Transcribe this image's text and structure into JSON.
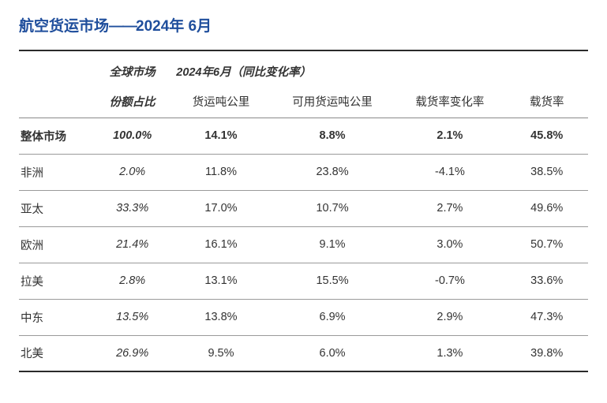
{
  "title": {
    "part1": "航空货运市场",
    "dash": "——",
    "part2": "2024年 6月"
  },
  "header": {
    "col1_top": "全球市场",
    "span_label": "2024年6月（同比变化率）",
    "col1_bot": "份额占比",
    "col2": "货运吨公里",
    "col3": "可用货运吨公里",
    "col4": "载货率变化率",
    "col5": "载货率"
  },
  "rows": [
    {
      "label": "整体市场",
      "share": "100.0%",
      "ctk": "14.1%",
      "actk": "8.8%",
      "lfch": "2.1%",
      "lf": "45.8%",
      "total": true
    },
    {
      "label": "非洲",
      "share": "2.0%",
      "ctk": "11.8%",
      "actk": "23.8%",
      "lfch": "-4.1%",
      "lf": "38.5%",
      "total": false
    },
    {
      "label": "亚太",
      "share": "33.3%",
      "ctk": "17.0%",
      "actk": "10.7%",
      "lfch": "2.7%",
      "lf": "49.6%",
      "total": false
    },
    {
      "label": "欧洲",
      "share": "21.4%",
      "ctk": "16.1%",
      "actk": "9.1%",
      "lfch": "3.0%",
      "lf": "50.7%",
      "total": false
    },
    {
      "label": "拉美",
      "share": "2.8%",
      "ctk": "13.1%",
      "actk": "15.5%",
      "lfch": "-0.7%",
      "lf": "33.6%",
      "total": false
    },
    {
      "label": "中东",
      "share": "13.5%",
      "ctk": "13.8%",
      "actk": "6.9%",
      "lfch": "2.9%",
      "lf": "47.3%",
      "total": false
    },
    {
      "label": "北美",
      "share": "26.9%",
      "ctk": "9.5%",
      "actk": "6.0%",
      "lfch": "1.3%",
      "lf": "39.8%",
      "total": false
    }
  ],
  "style": {
    "title_color": "#1f4e9c",
    "rule_thick_color": "#2a2a2a",
    "rule_thin_color": "#9a9a9a",
    "font_size_title": 19,
    "font_size_cell": 14.5,
    "background": "#ffffff"
  }
}
